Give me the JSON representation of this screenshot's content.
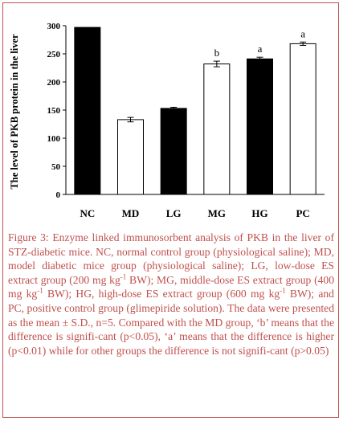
{
  "chart_data": {
    "type": "bar",
    "title": "",
    "xlabel": "",
    "ylabel": "The level of PKB protein in the liver",
    "ylim": [
      0,
      300
    ],
    "yticks": [
      0,
      50,
      100,
      150,
      200,
      250,
      300
    ],
    "grid": false,
    "categories": [
      "NC",
      "MD",
      "LG",
      "MG",
      "HG",
      "PC"
    ],
    "values": [
      297,
      133,
      153,
      232,
      241,
      268
    ],
    "errors": [
      0,
      4,
      2,
      5,
      3,
      3
    ],
    "fills": [
      "#000000",
      "#ffffff",
      "#000000",
      "#ffffff",
      "#000000",
      "#ffffff"
    ],
    "annotations": [
      "",
      "",
      "",
      "b",
      "a",
      "a"
    ]
  },
  "caption": {
    "segments": [
      "Figure 3: Enzyme linked immunosorbent analysis of PKB in the liver of STZ-diabetic mice. NC, normal control group (physiological saline); MD, model diabetic mice group (physiological saline); LG, low-dose ES extract group (200 mg kg",
      "-1",
      " BW); MG, middle-dose ES extract group (400 mg kg",
      "-1",
      " BW); HG, high-dose ES extract group (600 mg kg",
      "-1",
      " BW); and PC, positive control group (glimepiride solution). The data were presented as the mean ± S.D., n=5. Compared with the MD group, ‘b’ means that the difference is signifi-cant (p<0.05), ‘a’ means that the difference is higher (p<0.01) while for other groups the difference is not signifi-cant (p>0.05)"
    ]
  },
  "colors": {
    "border": "#c0504d",
    "caption_text": "#c0504d"
  }
}
